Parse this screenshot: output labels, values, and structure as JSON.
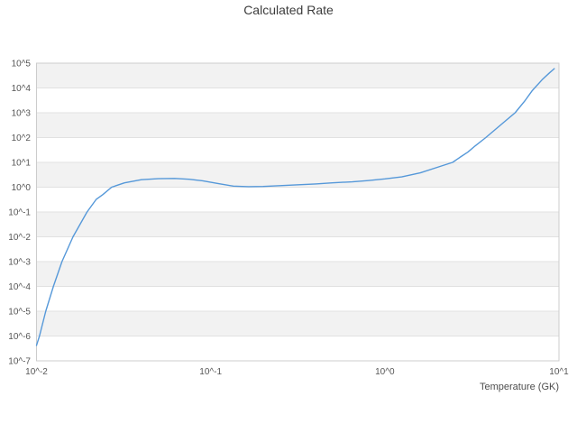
{
  "title": "Calculated Rate",
  "xaxis": {
    "label": "Temperature (GK)",
    "ticks": [
      "10^-2",
      "10^-1",
      "10^0",
      "10^1"
    ],
    "tick_exponents": [
      -2,
      -1,
      0,
      1
    ]
  },
  "yaxis": {
    "ticks": [
      "10^5",
      "10^4",
      "10^3",
      "10^2",
      "10^1",
      "10^0",
      "10^-1",
      "10^-2",
      "10^-3",
      "10^-4",
      "10^-5",
      "10^-6",
      "10^-7"
    ],
    "tick_exponents": [
      5,
      4,
      3,
      2,
      1,
      0,
      -1,
      -2,
      -3,
      -4,
      -5,
      -6,
      -7
    ]
  },
  "colors": {
    "line": "#5598d9",
    "band": "#f2f2f2",
    "grid": "#e1e1e1",
    "border": "#cccccc",
    "tick_text": "#565656",
    "title_text": "#3c3c3c"
  },
  "chart_data": {
    "type": "line",
    "title": "Calculated Rate",
    "xlabel": "Temperature (GK)",
    "ylabel": "",
    "x_scale": "log",
    "y_scale": "log",
    "xlim": [
      0.01,
      10
    ],
    "ylim": [
      1e-07,
      100000.0
    ],
    "grid": "horizontal-bands-alternating",
    "legend": "none",
    "series": [
      {
        "name": "Calculated Rate",
        "x": [
          0.01,
          0.0104,
          0.0113,
          0.0125,
          0.014,
          0.0162,
          0.0195,
          0.022,
          0.024,
          0.027,
          0.032,
          0.04,
          0.05,
          0.062,
          0.075,
          0.09,
          0.11,
          0.135,
          0.165,
          0.2,
          0.25,
          0.32,
          0.4,
          0.5,
          0.65,
          0.8,
          1.0,
          1.25,
          1.6,
          2.0,
          2.45,
          2.7,
          3.0,
          3.3,
          3.8,
          4.7,
          5.6,
          6.4,
          7.0,
          8.0,
          8.8,
          9.4
        ],
        "y": [
          4.2e-07,
          1e-06,
          1e-05,
          0.0001,
          0.001,
          0.01,
          0.1,
          0.32,
          0.5,
          1.0,
          1.5,
          2.0,
          2.2,
          2.25,
          2.1,
          1.8,
          1.4,
          1.1,
          1.05,
          1.07,
          1.15,
          1.25,
          1.35,
          1.5,
          1.65,
          1.85,
          2.15,
          2.6,
          3.8,
          6.3,
          10,
          16,
          26,
          46,
          100,
          355,
          1000,
          3160,
          7600,
          21400,
          40000,
          60000
        ]
      }
    ]
  }
}
